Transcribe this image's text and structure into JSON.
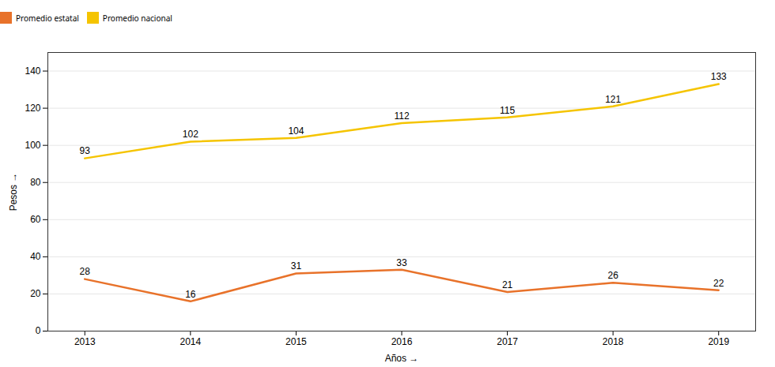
{
  "chart_data": {
    "type": "line",
    "x": [
      2013,
      2014,
      2015,
      2016,
      2017,
      2018,
      2019
    ],
    "xlabel": "Años",
    "ylabel": "Pesos",
    "xlim": [
      2012.65,
      2019.35
    ],
    "xticks": [
      2013,
      2014,
      2015,
      2016,
      2017,
      2018,
      2019
    ],
    "ylim": [
      0,
      150
    ],
    "yticks": [
      0,
      20,
      40,
      60,
      80,
      100,
      120,
      140
    ],
    "grid": true,
    "legend": "top",
    "data_labels": true,
    "series": [
      {
        "name": "Promedio estatal",
        "color": "#E8722A",
        "values": [
          28,
          16,
          31,
          33,
          21,
          26,
          22
        ]
      },
      {
        "name": "Promedio nacional",
        "color": "#F5C400",
        "values": [
          93,
          102,
          104,
          112,
          115,
          121,
          133
        ]
      }
    ]
  }
}
